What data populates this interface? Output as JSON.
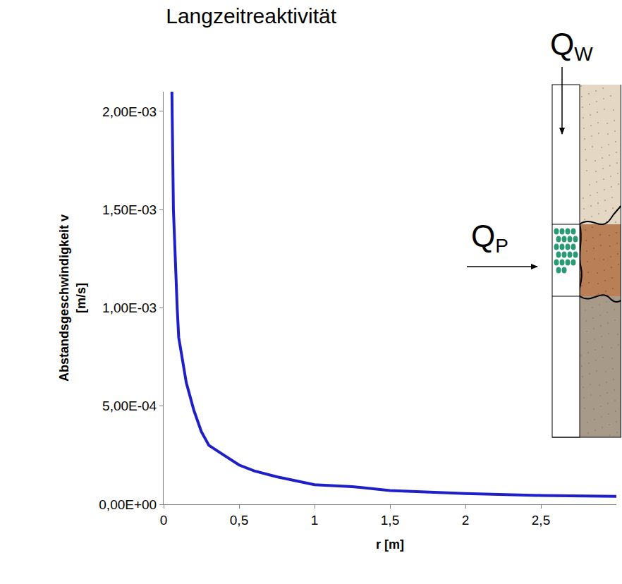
{
  "chart_data": {
    "type": "line",
    "title": "Langzeitreaktivität",
    "x_label": "r [m]",
    "y_label": "Abstandsgeschwindigkeit v [m/s]",
    "x": [
      0.055,
      0.065,
      0.09,
      0.1,
      0.15,
      0.2,
      0.25,
      0.3,
      0.4,
      0.5,
      0.6,
      0.75,
      1,
      1.25,
      1.5,
      2,
      2.5,
      3
    ],
    "series": [
      {
        "name": "Abstandsgeschwindigkeit v",
        "color": "#1f1fc8",
        "values": [
          0.0021,
          0.0015,
          0.001,
          0.00085,
          0.00062,
          0.00048,
          0.00037,
          0.0003,
          0.00025,
          0.0002,
          0.00017,
          0.00014,
          0.0001,
          9e-05,
          7e-05,
          5.5e-05,
          4.5e-05,
          4e-05
        ]
      }
    ],
    "xlim": [
      0,
      3
    ],
    "xticks": [
      0,
      {
        "value": 0.5,
        "label": "0,5"
      },
      1,
      {
        "value": 1.5,
        "label": "1,5"
      },
      2,
      {
        "value": 2.5,
        "label": "2,5"
      }
    ],
    "ylim": [
      0,
      0.0021
    ],
    "yticks": [
      {
        "value": 0,
        "label": "0,00E+00"
      },
      {
        "value": 0.0005,
        "label": "5,00E-04"
      },
      {
        "value": 0.001,
        "label": "1,00E-03"
      },
      {
        "value": 0.0015,
        "label": "1,50E-03"
      },
      {
        "value": 0.002,
        "label": "2,00E-03"
      }
    ],
    "grid": false,
    "annotations": [
      {
        "text": "Q",
        "sub": "W"
      },
      {
        "text": "Q",
        "sub": "P"
      }
    ]
  }
}
